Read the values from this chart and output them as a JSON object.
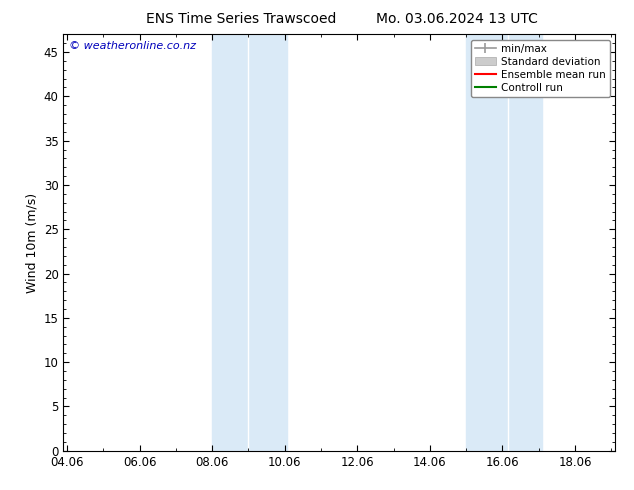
{
  "title_left": "ENS Time Series Trawscoed",
  "title_right": "Mo. 03.06.2024 13 UTC",
  "ylabel": "Wind 10m (m/s)",
  "watermark": "© weatheronline.co.nz",
  "x_tick_labels": [
    "04.06",
    "06.06",
    "08.06",
    "10.06",
    "12.06",
    "14.06",
    "16.06",
    "18.06"
  ],
  "x_tick_positions": [
    0,
    2,
    4,
    6,
    8,
    10,
    12,
    14
  ],
  "xlim": [
    -0.1,
    15.1
  ],
  "ylim": [
    0,
    47
  ],
  "y_ticks": [
    0,
    5,
    10,
    15,
    20,
    25,
    30,
    35,
    40,
    45
  ],
  "shaded_regions": [
    {
      "x_start": 4.0,
      "x_end": 5.0,
      "color": "#daeaf7"
    },
    {
      "x_start": 4.95,
      "x_end": 6.0,
      "color": "#daeaf7"
    },
    {
      "x_start": 11.0,
      "x_end": 12.2,
      "color": "#daeaf7"
    },
    {
      "x_start": 12.15,
      "x_end": 13.1,
      "color": "#daeaf7"
    }
  ],
  "legend_entries": [
    {
      "label": "min/max",
      "color": "#999999",
      "lw": 1.2,
      "style": "solid",
      "type": "errorbar"
    },
    {
      "label": "Standard deviation",
      "color": "#cccccc",
      "lw": 8,
      "style": "solid",
      "type": "patch"
    },
    {
      "label": "Ensemble mean run",
      "color": "#ff0000",
      "lw": 1.5,
      "style": "solid",
      "type": "line"
    },
    {
      "label": "Controll run",
      "color": "#008000",
      "lw": 1.5,
      "style": "solid",
      "type": "line"
    }
  ],
  "background_color": "#ffffff",
  "plot_bg_color": "#ffffff",
  "title_fontsize": 10,
  "tick_fontsize": 8.5,
  "ylabel_fontsize": 9,
  "watermark_color": "#0000bb",
  "watermark_fontsize": 8
}
